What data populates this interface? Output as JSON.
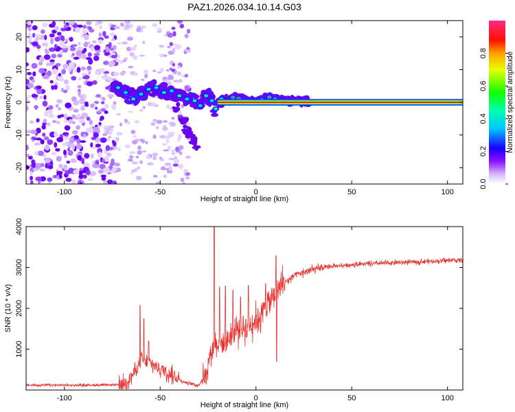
{
  "title": "PAZ1.2026.034.10.14.G03",
  "colors": {
    "snr_line": "#e8312d",
    "frame": "#000000",
    "background": "#ffffff"
  },
  "chart_data": [
    {
      "type": "heatmap",
      "name": "spectrogram",
      "xlabel": "Height of straight line (km)",
      "ylabel": "Frequency (Hz)",
      "xlim": [
        -120,
        108
      ],
      "ylim": [
        -25,
        25
      ],
      "xticks": [
        -100,
        -50,
        0,
        50,
        100
      ],
      "yticks": [
        -20,
        -10,
        0,
        10,
        20
      ],
      "xtick_labels": [
        "-100",
        "-50",
        "0",
        "50",
        "100"
      ],
      "ytick_labels": [
        "-20",
        "-10",
        "0",
        "10",
        "20"
      ],
      "colorbar": {
        "label": "Normalized spectral amplitude",
        "range": [
          0,
          1
        ],
        "ticks": [
          0.0,
          0.2,
          0.4,
          0.6,
          0.8
        ],
        "tick_labels": [
          "0.0",
          "0.2",
          "0.4",
          "0.6",
          "0.8"
        ],
        "colormap": [
          "#ffffff",
          "#c8a0ff",
          "#7a00ff",
          "#0010ff",
          "#00ffff",
          "#00ff00",
          "#ffff00",
          "#ff0000",
          "#ff2a80"
        ]
      },
      "noise_region_x": [
        -120,
        -73
      ],
      "noise_column_x": [
        -45,
        -35
      ],
      "signal_band": {
        "x_start": -75,
        "x_end": 108,
        "center_hz": 0,
        "halfwidth_hz": 1
      },
      "track": [
        {
          "x": -72,
          "f": 4.5
        },
        {
          "x": -68,
          "f": 3.0
        },
        {
          "x": -64,
          "f": 1.0
        },
        {
          "x": -60,
          "f": 2.5
        },
        {
          "x": -56,
          "f": 4.0
        },
        {
          "x": -52,
          "f": 4.5
        },
        {
          "x": -48,
          "f": 3.0
        },
        {
          "x": -44,
          "f": 3.5
        },
        {
          "x": -40,
          "f": 2.0
        },
        {
          "x": -36,
          "f": 1.0
        },
        {
          "x": -32,
          "f": 0.5
        },
        {
          "x": -29,
          "f": -1.0
        },
        {
          "x": -26,
          "f": 2.0
        },
        {
          "x": -23,
          "f": 0.5
        },
        {
          "x": -21,
          "f": -2.0
        },
        {
          "x": -18,
          "f": 1.0
        },
        {
          "x": -15,
          "f": 0.5
        },
        {
          "x": -12,
          "f": 1.5
        },
        {
          "x": -9,
          "f": 1.2
        },
        {
          "x": -5,
          "f": 0.5
        },
        {
          "x": -1,
          "f": 0.5
        },
        {
          "x": 3,
          "f": 0.8
        },
        {
          "x": 7,
          "f": 1.6
        },
        {
          "x": 10,
          "f": 1.0
        },
        {
          "x": 14,
          "f": 0.5
        },
        {
          "x": 20,
          "f": 0.3
        },
        {
          "x": 27,
          "f": 0.2
        }
      ],
      "branch": [
        {
          "x": -42,
          "f": -2
        },
        {
          "x": -38,
          "f": -5
        },
        {
          "x": -36,
          "f": -8
        },
        {
          "x": -33,
          "f": -11
        },
        {
          "x": -31,
          "f": -12.5
        },
        {
          "x": -34,
          "f": -10
        }
      ]
    },
    {
      "type": "line",
      "name": "snr",
      "xlabel": "Height of straight line (km)",
      "ylabel": "SNR (10 * v/v)",
      "xlim": [
        -120,
        108
      ],
      "ylim": [
        0,
        4000
      ],
      "xticks": [
        -100,
        -50,
        0,
        50,
        100
      ],
      "yticks": [
        1000,
        2000,
        3000,
        4000
      ],
      "xtick_labels": [
        "-100",
        "-50",
        "0",
        "50",
        "100"
      ],
      "ytick_labels": [
        "1000",
        "2000",
        "3000",
        "4000"
      ],
      "envelope": {
        "x": [
          -120,
          -80,
          -70,
          -66,
          -62,
          -60,
          -58,
          -54,
          -50,
          -46,
          -42,
          -38,
          -30,
          -26,
          -24,
          -21.5,
          -20,
          -16,
          -12,
          -8,
          -4,
          0,
          4,
          8,
          11,
          14,
          20,
          30,
          40,
          50,
          60,
          70,
          80,
          90,
          100,
          108
        ],
        "y": [
          120,
          120,
          130,
          280,
          520,
          800,
          680,
          620,
          520,
          430,
          330,
          200,
          110,
          420,
          860,
          1150,
          1150,
          1150,
          1400,
          1500,
          1600,
          1700,
          1950,
          2200,
          2450,
          2600,
          2800,
          2950,
          3030,
          3070,
          3090,
          3110,
          3130,
          3150,
          3170,
          3190
        ]
      },
      "spikes": [
        {
          "x": -60.5,
          "y": 2070
        },
        {
          "x": -58.5,
          "y": 1750
        },
        {
          "x": -56,
          "y": 1200
        },
        {
          "x": -21.8,
          "y": 4000
        },
        {
          "x": -19,
          "y": 2520
        },
        {
          "x": -16,
          "y": 2550
        },
        {
          "x": -12,
          "y": 2450
        },
        {
          "x": -8,
          "y": 2280
        },
        {
          "x": -4,
          "y": 2560
        },
        {
          "x": 10.5,
          "y": 3290
        },
        {
          "x": 10.8,
          "y": 700
        },
        {
          "x": 5,
          "y": 2600
        }
      ]
    }
  ]
}
